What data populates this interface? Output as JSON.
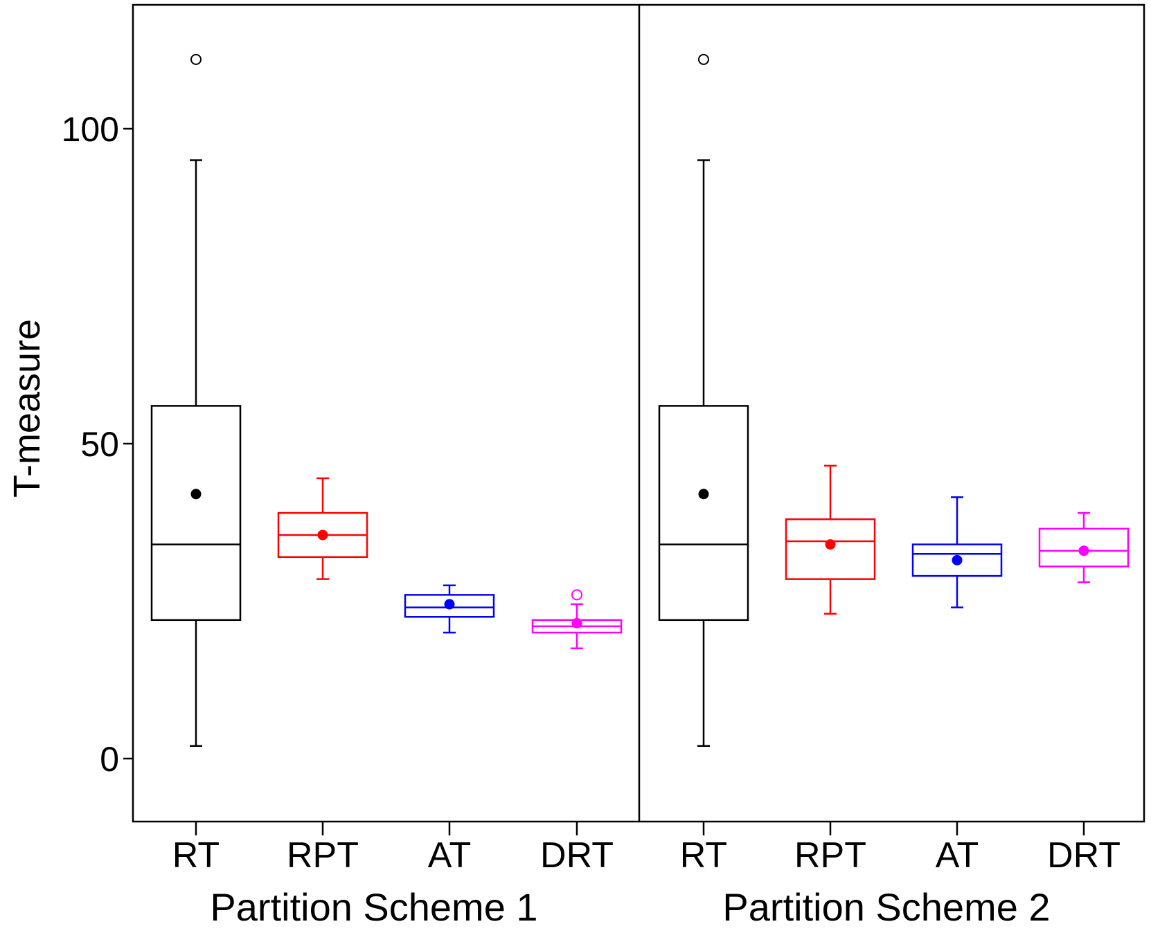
{
  "chart_data": {
    "type": "boxplot",
    "ylabel": "T-measure",
    "yticks": [
      0,
      50,
      100
    ],
    "ylim": [
      -10,
      120
    ],
    "grid": false,
    "legend": "none",
    "groups": [
      {
        "label": "Partition Scheme 1",
        "boxes": [
          {
            "category": "RT",
            "color": "#000000",
            "whisker_low": 2,
            "q1": 22,
            "median": 34,
            "q3": 56,
            "whisker_high": 95,
            "mean": 42,
            "outliers": [
              111
            ]
          },
          {
            "category": "RPT",
            "color": "#ff0000",
            "whisker_low": 28.5,
            "q1": 32,
            "median": 35.5,
            "q3": 39,
            "whisker_high": 44.5,
            "mean": 35.5,
            "outliers": []
          },
          {
            "category": "AT",
            "color": "#0000ff",
            "whisker_low": 20,
            "q1": 22.5,
            "median": 24,
            "q3": 26,
            "whisker_high": 27.5,
            "mean": 24.5,
            "outliers": []
          },
          {
            "category": "DRT",
            "color": "#ff00ff",
            "whisker_low": 17.5,
            "q1": 20,
            "median": 21,
            "q3": 22,
            "whisker_high": 24.5,
            "mean": 21.5,
            "outliers": [
              26
            ]
          }
        ]
      },
      {
        "label": "Partition Scheme 2",
        "boxes": [
          {
            "category": "RT",
            "color": "#000000",
            "whisker_low": 2,
            "q1": 22,
            "median": 34,
            "q3": 56,
            "whisker_high": 95,
            "mean": 42,
            "outliers": [
              111
            ]
          },
          {
            "category": "RPT",
            "color": "#ff0000",
            "whisker_low": 23,
            "q1": 28.5,
            "median": 34.5,
            "q3": 38,
            "whisker_high": 46.5,
            "mean": 34,
            "outliers": []
          },
          {
            "category": "AT",
            "color": "#0000ff",
            "whisker_low": 24,
            "q1": 29,
            "median": 32.5,
            "q3": 34,
            "whisker_high": 41.5,
            "mean": 31.5,
            "outliers": []
          },
          {
            "category": "DRT",
            "color": "#ff00ff",
            "whisker_low": 28,
            "q1": 30.5,
            "median": 33,
            "q3": 36.5,
            "whisker_high": 39,
            "mean": 33,
            "outliers": []
          }
        ]
      }
    ]
  }
}
